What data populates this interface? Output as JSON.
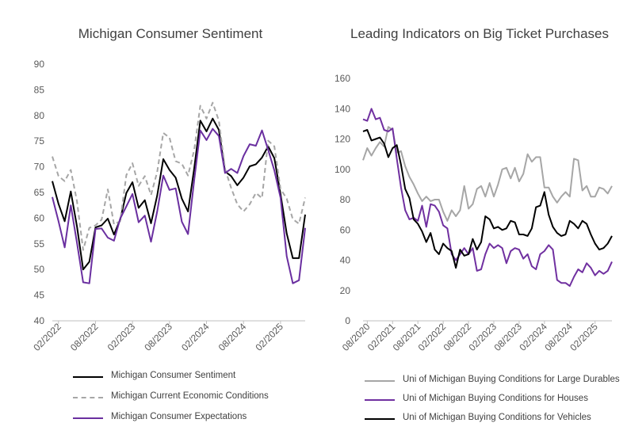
{
  "chart_data": [
    {
      "type": "line",
      "title": "Michigan Consumer Sentiment",
      "ylim": [
        40,
        90
      ],
      "yticks": [
        40,
        45,
        50,
        55,
        60,
        65,
        70,
        75,
        80,
        85,
        90
      ],
      "xtick_labels": [
        "02/2022",
        "08/2022",
        "02/2023",
        "08/2023",
        "02/2024",
        "08/2024",
        "02/2025"
      ],
      "x": [
        "01/2022",
        "02/2022",
        "03/2022",
        "04/2022",
        "05/2022",
        "06/2022",
        "07/2022",
        "08/2022",
        "09/2022",
        "10/2022",
        "11/2022",
        "12/2022",
        "01/2023",
        "02/2023",
        "03/2023",
        "04/2023",
        "05/2023",
        "06/2023",
        "07/2023",
        "08/2023",
        "09/2023",
        "10/2023",
        "11/2023",
        "12/2023",
        "01/2024",
        "02/2024",
        "03/2024",
        "04/2024",
        "05/2024",
        "06/2024",
        "07/2024",
        "08/2024",
        "09/2024",
        "10/2024",
        "11/2024",
        "12/2024",
        "01/2025",
        "02/2025",
        "03/2025",
        "04/2025",
        "05/2025",
        "06/2025"
      ],
      "grid": false,
      "legend_position": "bottom",
      "series": [
        {
          "name": "Michigan Consumer Sentiment",
          "color": "#000000",
          "dash": "solid",
          "values": [
            67.2,
            62.8,
            59.4,
            65.2,
            58.4,
            50.0,
            51.5,
            58.2,
            58.6,
            59.9,
            56.8,
            59.7,
            64.9,
            67.0,
            62.0,
            63.5,
            59.0,
            64.4,
            71.5,
            69.4,
            67.9,
            63.8,
            61.3,
            69.7,
            79.0,
            76.9,
            79.4,
            77.2,
            69.1,
            68.2,
            66.4,
            67.9,
            70.1,
            70.5,
            71.8,
            74.0,
            71.7,
            64.7,
            57.0,
            52.2,
            52.2,
            60.7
          ]
        },
        {
          "name": "Michigan Current Economic Conditions",
          "color": "#a6a6a6",
          "dash": "dashed",
          "values": [
            72.0,
            68.2,
            67.2,
            69.4,
            63.3,
            53.8,
            58.1,
            58.6,
            59.7,
            65.6,
            58.8,
            59.4,
            68.4,
            70.7,
            66.3,
            68.2,
            64.5,
            69.0,
            76.6,
            75.7,
            71.1,
            70.6,
            68.3,
            73.3,
            81.9,
            79.4,
            82.5,
            79.0,
            69.6,
            65.9,
            62.7,
            61.3,
            62.7,
            64.9,
            63.9,
            75.1,
            74.0,
            65.7,
            63.8,
            59.8,
            58.9,
            64.0
          ]
        },
        {
          "name": "Michigan Consumer Expectations",
          "color": "#6a2fa0",
          "dash": "solid",
          "values": [
            64.1,
            59.4,
            54.3,
            62.5,
            55.2,
            47.5,
            47.3,
            57.9,
            58.0,
            56.2,
            55.6,
            59.9,
            62.3,
            64.7,
            59.2,
            60.5,
            55.4,
            61.3,
            68.3,
            65.5,
            65.8,
            59.3,
            56.9,
            67.4,
            77.1,
            75.2,
            77.4,
            76.0,
            68.8,
            69.6,
            68.8,
            72.1,
            74.4,
            74.1,
            77.1,
            73.3,
            69.3,
            64.0,
            52.6,
            47.3,
            47.9,
            58.1
          ]
        }
      ]
    },
    {
      "type": "line",
      "title": "Leading Indicators on Big Ticket Purchases",
      "ylim": [
        0,
        160
      ],
      "yticks": [
        0,
        20,
        40,
        60,
        80,
        100,
        120,
        140,
        160
      ],
      "xtick_labels": [
        "08/2020",
        "02/2021",
        "08/2021",
        "02/2022",
        "08/2022",
        "02/2023",
        "08/2023",
        "02/2024",
        "08/2024",
        "02/2025"
      ],
      "x": [
        "07/2020",
        "08/2020",
        "09/2020",
        "10/2020",
        "11/2020",
        "12/2020",
        "01/2021",
        "02/2021",
        "03/2021",
        "04/2021",
        "05/2021",
        "06/2021",
        "07/2021",
        "08/2021",
        "09/2021",
        "10/2021",
        "11/2021",
        "12/2021",
        "01/2022",
        "02/2022",
        "03/2022",
        "04/2022",
        "05/2022",
        "06/2022",
        "07/2022",
        "08/2022",
        "09/2022",
        "10/2022",
        "11/2022",
        "12/2022",
        "01/2023",
        "02/2023",
        "03/2023",
        "04/2023",
        "05/2023",
        "06/2023",
        "07/2023",
        "08/2023",
        "09/2023",
        "10/2023",
        "11/2023",
        "12/2023",
        "01/2024",
        "02/2024",
        "03/2024",
        "04/2024",
        "05/2024",
        "06/2024",
        "07/2024",
        "08/2024",
        "09/2024",
        "10/2024",
        "11/2024",
        "12/2024",
        "01/2025",
        "02/2025",
        "03/2025",
        "04/2025",
        "05/2025",
        "06/2025"
      ],
      "grid": false,
      "legend_position": "bottom",
      "series": [
        {
          "name": "Uni of Michigan Buying Conditions for Large Durables",
          "color": "#a6a6a6",
          "dash": "solid",
          "values": [
            106,
            114,
            109,
            114,
            118,
            115,
            128,
            126,
            111,
            112,
            102,
            95,
            90,
            84,
            79,
            82,
            79,
            80,
            80,
            72,
            66,
            73,
            69,
            73,
            89,
            74,
            77,
            87,
            89,
            82,
            91,
            82,
            90,
            100,
            101,
            94,
            101,
            92,
            97,
            110,
            105,
            108,
            108,
            88,
            88,
            82,
            78,
            82,
            85,
            82,
            107,
            106,
            86,
            89,
            82,
            82,
            88,
            87,
            84,
            89
          ]
        },
        {
          "name": "Uni of Michigan Buying Conditions for Houses",
          "color": "#7030a0",
          "dash": "solid",
          "values": [
            133,
            132,
            140,
            133,
            134,
            126,
            125,
            127,
            107,
            88,
            73,
            67,
            68,
            66,
            76,
            62,
            77,
            76,
            72,
            63,
            61,
            44,
            40,
            44,
            48,
            44,
            48,
            33,
            34,
            44,
            51,
            48,
            50,
            48,
            38,
            46,
            48,
            47,
            41,
            44,
            36,
            34,
            44,
            46,
            50,
            47,
            27,
            25,
            25,
            23,
            29,
            34,
            32,
            38,
            35,
            30,
            33,
            31,
            33,
            39
          ]
        },
        {
          "name": "Uni of Michigan Buying Conditions for Vehicles",
          "color": "#000000",
          "dash": "solid",
          "values": [
            125,
            126,
            119,
            120,
            121,
            117,
            108,
            114,
            116,
            103,
            87,
            81,
            67,
            64,
            59,
            52,
            58,
            47,
            44,
            51,
            48,
            46,
            35,
            47,
            43,
            44,
            54,
            47,
            52,
            69,
            67,
            61,
            62,
            60,
            61,
            66,
            65,
            57,
            57,
            56,
            61,
            75,
            76,
            85,
            70,
            62,
            58,
            56,
            57,
            66,
            64,
            61,
            66,
            64,
            57,
            51,
            47,
            48,
            51,
            56
          ]
        }
      ]
    }
  ]
}
